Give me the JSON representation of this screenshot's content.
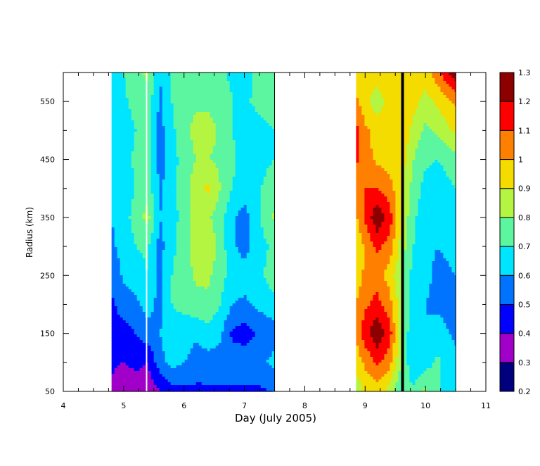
{
  "chart_data": {
    "type": "heatmap",
    "title": "",
    "xlabel": "Day (July 2005)",
    "ylabel": "Radius (km)",
    "xlim": [
      4,
      11
    ],
    "ylim": [
      50,
      600
    ],
    "x_ticks": [
      4,
      5,
      6,
      7,
      8,
      9,
      10,
      11
    ],
    "y_ticks": [
      50,
      150,
      250,
      350,
      450,
      550
    ],
    "colorbar": {
      "levels": [
        0.2,
        0.3,
        0.4,
        0.5,
        0.6,
        0.7,
        0.8,
        0.9,
        1,
        1.1,
        1.2,
        1.3
      ],
      "colors": [
        "#00007f",
        "#a000c8",
        "#0000ff",
        "#0073ff",
        "#00e5ff",
        "#5cf5a0",
        "#b4f541",
        "#f5dc00",
        "#ff7f00",
        "#ff0000",
        "#8c0000"
      ]
    },
    "series": [
      {
        "days": [
          4.8,
          5.0,
          5.2,
          5.4,
          5.6,
          5.8,
          6.0,
          6.2,
          6.4,
          6.6,
          6.8,
          7.0,
          7.2,
          7.5
        ],
        "radii": [
          50,
          100,
          150,
          200,
          250,
          300,
          350,
          400,
          450,
          500,
          550,
          600
        ],
        "values": [
          [
            0.38,
            0.32,
            0.3,
            0.32,
            0.4,
            0.46,
            0.48,
            0.48,
            0.48,
            0.48,
            0.48,
            0.48,
            0.48,
            0.5
          ],
          [
            0.42,
            0.4,
            0.44,
            0.4,
            0.56,
            0.64,
            0.6,
            0.55,
            0.56,
            0.56,
            0.56,
            0.57,
            0.56,
            0.63
          ],
          [
            0.46,
            0.46,
            0.5,
            0.56,
            0.6,
            0.68,
            0.66,
            0.62,
            0.66,
            0.62,
            0.48,
            0.45,
            0.5,
            0.56
          ],
          [
            0.48,
            0.55,
            0.58,
            0.64,
            0.56,
            0.7,
            0.72,
            0.76,
            0.78,
            0.7,
            0.6,
            0.58,
            0.62,
            0.66
          ],
          [
            0.52,
            0.62,
            0.64,
            0.7,
            0.58,
            0.7,
            0.76,
            0.82,
            0.82,
            0.74,
            0.66,
            0.64,
            0.66,
            0.76
          ],
          [
            0.58,
            0.64,
            0.7,
            0.72,
            0.56,
            0.68,
            0.74,
            0.84,
            0.88,
            0.76,
            0.62,
            0.56,
            0.66,
            0.72
          ],
          [
            0.6,
            0.66,
            0.74,
            0.84,
            0.6,
            0.66,
            0.74,
            0.84,
            0.82,
            0.74,
            0.62,
            0.56,
            0.66,
            0.82
          ],
          [
            0.6,
            0.66,
            0.7,
            0.76,
            0.58,
            0.66,
            0.76,
            0.86,
            0.92,
            0.8,
            0.7,
            0.64,
            0.68,
            0.76
          ],
          [
            0.64,
            0.66,
            0.72,
            0.76,
            0.56,
            0.66,
            0.74,
            0.8,
            0.8,
            0.78,
            0.72,
            0.66,
            0.66,
            0.7
          ],
          [
            0.62,
            0.64,
            0.7,
            0.74,
            0.56,
            0.68,
            0.76,
            0.84,
            0.84,
            0.78,
            0.7,
            0.66,
            0.66,
            0.7
          ],
          [
            0.64,
            0.68,
            0.74,
            0.76,
            0.58,
            0.7,
            0.76,
            0.78,
            0.78,
            0.76,
            0.7,
            0.68,
            0.72,
            0.76
          ],
          [
            0.66,
            0.7,
            0.78,
            0.82,
            0.6,
            0.72,
            0.76,
            0.76,
            0.74,
            0.72,
            0.68,
            0.66,
            0.72,
            0.74
          ]
        ]
      },
      {
        "days": [
          8.85,
          9.0,
          9.2,
          9.4,
          9.6,
          9.8,
          10.0,
          10.2,
          10.5
        ],
        "radii": [
          50,
          100,
          150,
          200,
          250,
          300,
          350,
          400,
          450,
          500,
          550,
          600
        ],
        "values": [
          [
            0.82,
            0.92,
            0.95,
            0.86,
            0.7,
            0.72,
            0.82,
            0.72,
            0.6
          ],
          [
            0.94,
            1.02,
            1.12,
            1.04,
            0.8,
            0.62,
            0.66,
            0.72,
            0.62
          ],
          [
            1.02,
            1.16,
            1.28,
            1.16,
            0.82,
            0.6,
            0.6,
            0.64,
            0.58
          ],
          [
            1.0,
            1.08,
            1.14,
            1.04,
            0.84,
            0.64,
            0.6,
            0.58,
            0.56
          ],
          [
            0.94,
            1.02,
            1.04,
            0.96,
            0.8,
            0.66,
            0.62,
            0.58,
            0.6
          ],
          [
            0.9,
            1.02,
            1.12,
            1.06,
            0.86,
            0.7,
            0.62,
            0.6,
            0.62
          ],
          [
            0.98,
            1.12,
            1.28,
            1.16,
            0.9,
            0.72,
            0.64,
            0.6,
            0.64
          ],
          [
            1.04,
            1.1,
            1.1,
            1.04,
            0.92,
            0.76,
            0.66,
            0.64,
            0.7
          ],
          [
            1.12,
            1.04,
            0.98,
            0.96,
            0.96,
            0.8,
            0.72,
            0.7,
            0.76
          ],
          [
            1.14,
            1.02,
            0.96,
            0.98,
            1.0,
            0.86,
            0.78,
            0.82,
            0.92
          ],
          [
            1.02,
            0.94,
            0.84,
            0.94,
            1.0,
            0.94,
            0.86,
            0.92,
            1.02
          ],
          [
            0.94,
            0.96,
            0.96,
            0.98,
            0.98,
            1.0,
            0.96,
            1.06,
            1.28
          ]
        ]
      }
    ],
    "markers": [
      {
        "type": "vertical-line",
        "x": 5.38,
        "color": "#ffffff"
      },
      {
        "type": "vertical-line",
        "x": 9.62,
        "color": "#000000"
      }
    ]
  }
}
